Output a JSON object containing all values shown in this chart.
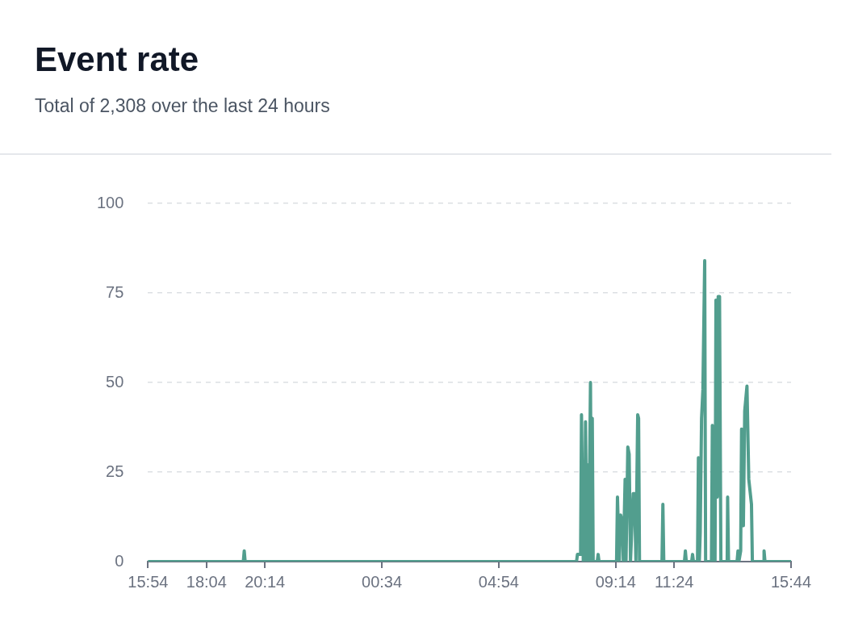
{
  "chart_data": {
    "type": "line",
    "title": "Event rate",
    "subtitle": "Total of 2,308 over the last 24 hours",
    "x": [
      "--01-01T15:54",
      "--01-01T19:26",
      "--01-01T19:28",
      "--01-01T19:30",
      "--01-02T07:47",
      "--01-02T07:49",
      "--01-02T07:56",
      "--01-02T07:58",
      "--01-02T08:02",
      "--01-02T08:05",
      "--01-02T08:07",
      "--01-02T08:10",
      "--01-02T08:11",
      "--01-02T08:14",
      "--01-02T08:18",
      "--01-02T08:20",
      "--01-02T08:22",
      "--01-02T08:24",
      "--01-02T08:33",
      "--01-02T08:35",
      "--01-02T08:37",
      "--01-02T09:16",
      "--01-02T09:18",
      "--01-02T09:22",
      "--01-02T09:25",
      "--01-02T09:27",
      "--01-02T09:29",
      "--01-02T09:31",
      "--01-02T09:35",
      "--01-02T09:37",
      "--01-02T09:41",
      "--01-02T09:44",
      "--01-02T09:47",
      "--01-02T09:53",
      "--01-02T09:56",
      "--01-02T09:59",
      "--01-02T10:03",
      "--01-02T10:05",
      "--01-02T10:07",
      "--01-02T10:57",
      "--01-02T10:59",
      "--01-02T11:01",
      "--01-02T11:47",
      "--01-02T11:49",
      "--01-02T11:51",
      "--01-02T12:03",
      "--01-02T12:05",
      "--01-02T12:07",
      "--01-02T12:16",
      "--01-02T12:18",
      "--01-02T12:20",
      "--01-02T12:22",
      "--01-02T12:25",
      "--01-02T12:28",
      "--01-02T12:32",
      "--01-02T12:34",
      "--01-02T12:47",
      "--01-02T12:49",
      "--01-02T12:51",
      "--01-02T12:55",
      "--01-02T12:57",
      "--01-02T13:00",
      "--01-02T13:02",
      "--01-02T13:05",
      "--01-02T13:08",
      "--01-02T13:22",
      "--01-02T13:23",
      "--01-02T13:25",
      "--01-02T13:44",
      "--01-02T13:46",
      "--01-02T13:48",
      "--01-02T13:52",
      "--01-02T13:54",
      "--01-02T13:58",
      "--01-02T14:01",
      "--01-02T14:06",
      "--01-02T14:10",
      "--01-02T14:16",
      "--01-02T14:18",
      "--01-02T14:43",
      "--01-02T14:44",
      "--01-02T14:46",
      "--01-02T15:44"
    ],
    "series": [
      {
        "color": "#529e8e",
        "values": [
          0,
          0,
          3,
          0,
          0,
          2,
          2,
          41,
          0,
          0,
          39,
          0,
          27,
          0,
          50,
          0,
          40,
          0,
          0,
          2,
          0,
          0,
          18,
          0,
          13,
          12,
          12,
          0,
          23,
          0,
          32,
          30,
          0,
          19,
          19,
          0,
          41,
          40,
          0,
          0,
          16,
          0,
          0,
          3,
          0,
          0,
          2,
          0,
          0,
          29,
          0,
          8,
          40,
          48,
          84,
          0,
          0,
          38,
          0,
          0,
          73,
          18,
          74,
          74,
          0,
          0,
          18,
          0,
          0,
          3,
          0,
          3,
          37,
          10,
          42,
          49,
          23,
          16,
          0,
          0,
          3,
          0,
          0
        ]
      }
    ],
    "xlim": [
      "--01-01T15:54",
      "--01-02T15:44"
    ],
    "xticks": [
      {
        "value": "--01-01T15:54",
        "label": "15:54"
      },
      {
        "value": "--01-01T18:04",
        "label": "18:04"
      },
      {
        "value": "--01-01T20:14",
        "label": "20:14"
      },
      {
        "value": "--01-02T00:34",
        "label": "00:34"
      },
      {
        "value": "--01-02T04:54",
        "label": "04:54"
      },
      {
        "value": "--01-02T09:14",
        "label": "09:14"
      },
      {
        "value": "--01-02T11:24",
        "label": "11:24"
      },
      {
        "value": "--01-02T15:44",
        "label": "15:44"
      }
    ],
    "ylim": [
      0,
      100
    ],
    "yticks": [
      0,
      25,
      50,
      75,
      100
    ],
    "grid": "y",
    "legend": false,
    "marker": "none",
    "line_style": "solid"
  }
}
